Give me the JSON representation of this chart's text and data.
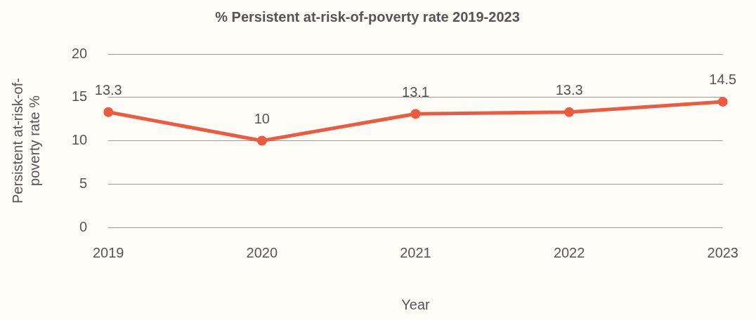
{
  "chart_data": {
    "type": "line",
    "title": "% Persistent at-risk-of-poverty rate 2019-2023",
    "xlabel": "Year",
    "ylabel": "Persistent at-risk-of-poverty rate %",
    "categories": [
      "2019",
      "2020",
      "2021",
      "2022",
      "2023"
    ],
    "series": [
      {
        "color": "#ec5a3f",
        "values": [
          13.3,
          10,
          13.1,
          13.3,
          14.5
        ]
      }
    ],
    "ylim": [
      0,
      20
    ],
    "yticks": [
      0,
      5,
      10,
      15,
      20
    ],
    "grid": "y",
    "legend": false,
    "marker": "circle",
    "line_style": "solid",
    "data_labels": true
  }
}
